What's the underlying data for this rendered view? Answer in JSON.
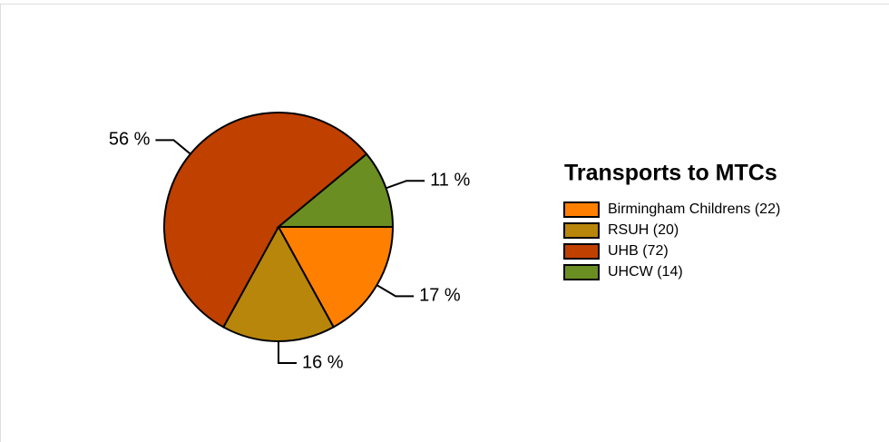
{
  "chart_data": {
    "type": "pie",
    "title": "Transports to MTCs",
    "categories": [
      "Birmingham Childrens (22)",
      "RSUH (20)",
      "UHB (72)",
      "UHCW (14)"
    ],
    "values": [
      17,
      16,
      56,
      11
    ],
    "value_labels": [
      "17 %",
      "16 %",
      "56 %",
      "11 %"
    ],
    "colors": [
      "#ff8000",
      "#b8860b",
      "#c04000",
      "#6b8e23"
    ],
    "legend": "right"
  }
}
